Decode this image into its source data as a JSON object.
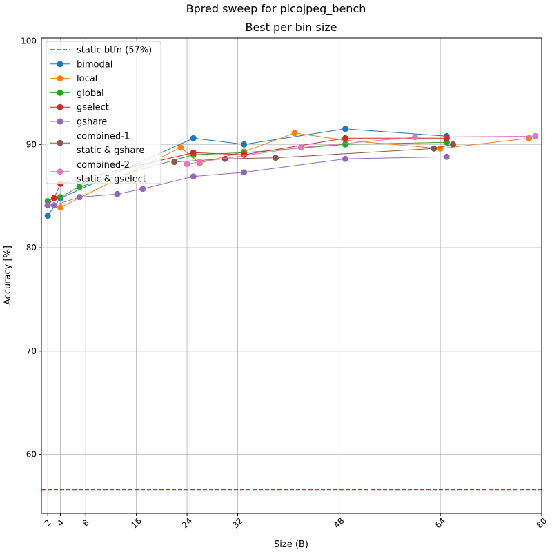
{
  "chart_data": {
    "type": "line",
    "title": "Bpred sweep for picojpeg_bench",
    "subtitle": "Best per bin size",
    "xlabel": "Size (B)",
    "ylabel": "Accuracy [%]",
    "xlim": [
      1,
      80
    ],
    "ylim": [
      54.3,
      100.3
    ],
    "xticks": [
      2,
      4,
      8,
      16,
      24,
      32,
      48,
      64,
      80
    ],
    "yticks": [
      60,
      70,
      80,
      90,
      100
    ],
    "grid": true,
    "legend_position": "top-left",
    "reference_line": {
      "name": "static btfn (57%)",
      "y": 56.6,
      "color": "#d62728"
    },
    "series": [
      {
        "name": "bimodal",
        "color": "#1f77b4",
        "x": [
          2,
          4,
          25,
          33,
          49,
          65
        ],
        "y": [
          83.1,
          84.8,
          90.6,
          90.0,
          91.5,
          90.8
        ]
      },
      {
        "name": "local",
        "color": "#ff7f0e",
        "x": [
          4,
          23,
          26,
          33,
          41,
          49,
          64,
          78
        ],
        "y": [
          83.9,
          89.7,
          88.2,
          89.3,
          91.1,
          90.4,
          89.6,
          90.6
        ]
      },
      {
        "name": "global",
        "color": "#2ca02c",
        "x": [
          2,
          3,
          4,
          7,
          25,
          33,
          49,
          65
        ],
        "y": [
          84.5,
          84.8,
          84.9,
          85.9,
          89.0,
          89.2,
          90.0,
          90.2
        ]
      },
      {
        "name": "gselect",
        "color": "#d62728",
        "x": [
          2,
          3,
          4,
          25,
          33,
          49,
          65
        ],
        "y": [
          84.1,
          84.8,
          86.2,
          89.2,
          89.0,
          90.6,
          90.6
        ]
      },
      {
        "name": "gshare",
        "color": "#9467bd",
        "x": [
          2,
          3,
          7,
          13,
          17,
          25,
          33,
          49,
          65
        ],
        "y": [
          84.1,
          84.1,
          84.9,
          85.2,
          85.7,
          86.9,
          87.3,
          88.6,
          88.8
        ]
      },
      {
        "name": "combined-1\nstatic & gshare",
        "color": "#8c564b",
        "x": [
          22,
          30,
          38,
          63,
          66
        ],
        "y": [
          88.3,
          88.6,
          88.7,
          89.6,
          90.0
        ]
      },
      {
        "name": "combined-2\nstatic & gselect",
        "color": "#e377c2",
        "x": [
          24,
          26,
          42,
          60,
          79
        ],
        "y": [
          88.1,
          88.3,
          89.7,
          90.7,
          90.8
        ]
      }
    ]
  }
}
